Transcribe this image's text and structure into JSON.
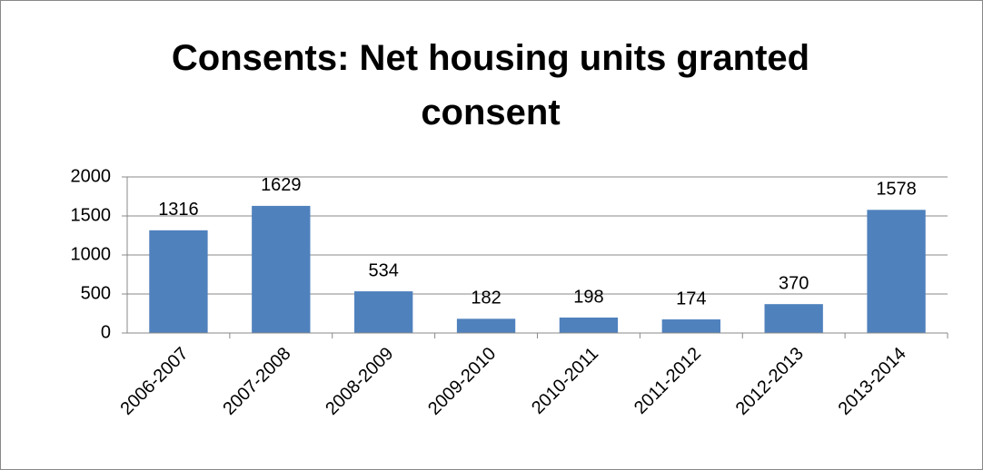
{
  "chart_data": {
    "type": "bar",
    "title": "Consents: Net housing units granted consent",
    "categories": [
      "2006-2007",
      "2007-2008",
      "2008-2009",
      "2009-2010",
      "2010-2011",
      "2011-2012",
      "2012-2013",
      "2013-2014"
    ],
    "values": [
      1316,
      1629,
      534,
      182,
      198,
      174,
      370,
      1578
    ],
    "color": "#4f81bd",
    "ylim": [
      0,
      2000
    ],
    "yticks": [
      0,
      500,
      1000,
      1500,
      2000
    ],
    "grid": true
  }
}
